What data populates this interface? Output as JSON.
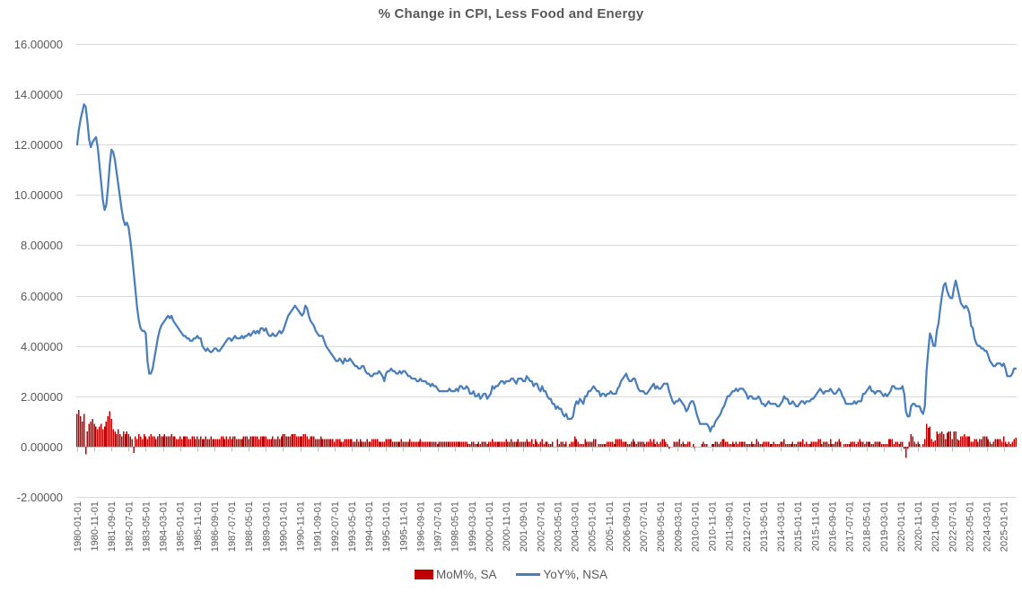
{
  "title": "% Change in CPI, Less Food and Energy",
  "colors": {
    "bar": "#C00000",
    "line": "#4A7EBB",
    "grid": "#D9D9D9",
    "axis": "#BFBFBF",
    "text": "#595959"
  },
  "chart_data": {
    "type": "combo",
    "title": "% Change in CPI, Less Food and Energy",
    "frequency": "monthly",
    "x_start": "1980-01",
    "x_end": "2025-08",
    "ylim": [
      -2,
      16
    ],
    "y_tick_step": 2,
    "grid": true,
    "legend_position": "bottom",
    "y_tick_labels": [
      "16.00000",
      "14.00000",
      "12.00000",
      "10.00000",
      "8.00000",
      "6.00000",
      "4.00000",
      "2.00000",
      "0.00000",
      "-2.00000"
    ],
    "x_tick_every_n_months": 10,
    "x_tick_labels": [
      "1980-01-01",
      "1980-11-01",
      "1981-09-01",
      "1982-07-01",
      "1983-05-01",
      "1984-03-01",
      "1985-01-01",
      "1985-11-01",
      "1986-09-01",
      "1987-07-01",
      "1988-05-01",
      "1989-03-01",
      "1990-01-01",
      "1990-11-01",
      "1991-09-01",
      "1992-07-01",
      "1993-05-01",
      "1994-03-01",
      "1995-01-01",
      "1995-11-01",
      "1996-09-01",
      "1997-07-01",
      "1998-05-01",
      "1999-03-01",
      "2000-01-01",
      "2000-11-01",
      "2001-09-01",
      "2002-07-01",
      "2003-05-01",
      "2004-03-01",
      "2005-01-01",
      "2005-11-01",
      "2006-09-01",
      "2007-07-01",
      "2008-05-01",
      "2009-03-01",
      "2010-01-01",
      "2010-11-01",
      "2011-09-01",
      "2012-07-01",
      "2013-05-01",
      "2014-03-01",
      "2015-01-01",
      "2015-11-01",
      "2016-09-01",
      "2017-07-01",
      "2018-05-01",
      "2019-03-01",
      "2020-01-01",
      "2020-11-01",
      "2021-09-01",
      "2022-07-01",
      "2023-05-01",
      "2024-03-01",
      "2025-01-01"
    ],
    "series": [
      {
        "name": "MoM%, SA",
        "type": "bar",
        "color": "#C00000",
        "values": [
          1.3,
          1.45,
          1.2,
          1.0,
          1.3,
          -0.3,
          0.6,
          0.9,
          1.0,
          1.1,
          0.9,
          0.8,
          0.7,
          0.8,
          0.9,
          0.7,
          0.8,
          1.0,
          1.2,
          1.4,
          1.1,
          0.7,
          0.6,
          0.5,
          0.7,
          0.5,
          0.4,
          0.6,
          0.5,
          0.6,
          0.5,
          0.4,
          0.3,
          -0.25,
          0.4,
          0.3,
          0.5,
          0.4,
          0.3,
          0.5,
          0.4,
          0.3,
          0.4,
          0.5,
          0.4,
          0.4,
          0.3,
          0.4,
          0.5,
          0.4,
          0.4,
          0.5,
          0.4,
          0.4,
          0.4,
          0.5,
          0.4,
          0.4,
          0.3,
          0.3,
          0.4,
          0.3,
          0.4,
          0.4,
          0.4,
          0.3,
          0.3,
          0.4,
          0.4,
          0.3,
          0.4,
          0.3,
          0.4,
          0.3,
          0.3,
          0.4,
          0.3,
          0.3,
          0.4,
          0.3,
          0.3,
          0.3,
          0.3,
          0.3,
          0.4,
          0.4,
          0.3,
          0.4,
          0.3,
          0.4,
          0.3,
          0.4,
          0.4,
          0.3,
          0.3,
          0.3,
          0.3,
          0.4,
          0.4,
          0.4,
          0.3,
          0.4,
          0.4,
          0.4,
          0.4,
          0.4,
          0.3,
          0.4,
          0.4,
          0.4,
          0.4,
          0.3,
          0.3,
          0.3,
          0.4,
          0.3,
          0.3,
          0.4,
          0.3,
          0.4,
          0.5,
          0.5,
          0.4,
          0.4,
          0.4,
          0.5,
          0.5,
          0.5,
          0.4,
          0.4,
          0.4,
          0.4,
          0.5,
          0.5,
          0.4,
          0.3,
          0.4,
          0.4,
          0.4,
          0.3,
          0.3,
          0.3,
          0.4,
          0.3,
          0.3,
          0.3,
          0.3,
          0.3,
          0.3,
          0.3,
          0.2,
          0.3,
          0.3,
          0.3,
          0.2,
          0.2,
          0.3,
          0.3,
          0.3,
          0.3,
          0.3,
          0.2,
          0.2,
          0.3,
          0.2,
          0.3,
          0.2,
          0.2,
          0.2,
          0.3,
          0.2,
          0.2,
          0.3,
          0.3,
          0.3,
          0.3,
          0.2,
          0.2,
          0.2,
          0.2,
          0.3,
          0.3,
          0.3,
          0.3,
          0.2,
          0.2,
          0.2,
          0.2,
          0.2,
          0.3,
          0.2,
          0.2,
          0.2,
          0.2,
          0.3,
          0.2,
          0.2,
          0.2,
          0.2,
          0.2,
          0.3,
          0.2,
          0.2,
          0.2,
          0.2,
          0.2,
          0.2,
          0.2,
          0.2,
          0.2,
          0.1,
          0.2,
          0.2,
          0.2,
          0.2,
          0.2,
          0.2,
          0.2,
          0.2,
          0.2,
          0.2,
          0.2,
          0.2,
          0.2,
          0.2,
          0.2,
          0.2,
          0.2,
          0.1,
          0.1,
          0.2,
          0.2,
          0.1,
          0.1,
          0.2,
          0.1,
          0.2,
          0.2,
          0.2,
          0.1,
          0.2,
          0.2,
          0.3,
          0.2,
          0.2,
          0.2,
          0.2,
          0.2,
          0.2,
          0.2,
          0.3,
          0.2,
          0.2,
          0.3,
          0.2,
          0.2,
          0.2,
          0.3,
          0.2,
          0.2,
          0.2,
          0.2,
          0.3,
          0.2,
          0.2,
          0.3,
          0.1,
          0.3,
          0.2,
          0.1,
          0.2,
          0.3,
          0.1,
          0.2,
          0.2,
          0.1,
          0.1,
          0.2,
          0.0,
          0.0,
          0.3,
          0.1,
          0.2,
          0.2,
          0.1,
          0.2,
          0.0,
          0.1,
          0.2,
          0.2,
          0.4,
          0.3,
          0.2,
          0.1,
          0.1,
          0.1,
          0.3,
          0.2,
          0.2,
          0.2,
          0.2,
          0.3,
          0.3,
          0.0,
          0.1,
          0.1,
          0.1,
          0.1,
          0.1,
          0.2,
          0.2,
          0.2,
          0.2,
          0.1,
          0.3,
          0.3,
          0.3,
          0.3,
          0.2,
          0.2,
          0.2,
          0.1,
          0.1,
          0.2,
          0.3,
          0.2,
          0.1,
          0.2,
          0.2,
          0.2,
          0.2,
          0.1,
          0.2,
          0.2,
          0.3,
          0.2,
          0.3,
          0.1,
          0.2,
          0.1,
          0.2,
          0.3,
          0.3,
          0.2,
          0.1,
          -0.1,
          0.0,
          0.0,
          0.2,
          0.2,
          0.2,
          0.3,
          0.1,
          0.2,
          0.1,
          0.1,
          0.2,
          0.2,
          0.0,
          0.1,
          -0.1,
          0.0,
          0.0,
          0.0,
          0.1,
          0.2,
          0.1,
          0.1,
          0.0,
          0.0,
          0.1,
          0.1,
          0.2,
          0.2,
          0.1,
          0.2,
          0.3,
          0.3,
          0.2,
          0.2,
          0.1,
          0.1,
          0.2,
          0.1,
          0.2,
          0.1,
          0.2,
          0.2,
          0.2,
          0.2,
          0.1,
          0.1,
          0.1,
          0.2,
          0.1,
          0.1,
          0.3,
          0.2,
          0.1,
          0.1,
          0.2,
          0.2,
          0.2,
          0.2,
          0.1,
          0.1,
          0.2,
          0.1,
          0.1,
          0.1,
          0.2,
          0.2,
          0.3,
          0.1,
          0.1,
          0.1,
          0.1,
          0.2,
          0.1,
          0.1,
          0.2,
          0.2,
          0.2,
          0.3,
          0.1,
          0.2,
          0.1,
          0.1,
          0.2,
          0.2,
          0.2,
          0.2,
          0.3,
          0.3,
          0.1,
          0.2,
          0.2,
          0.2,
          0.1,
          0.3,
          0.1,
          0.1,
          0.2,
          0.2,
          0.3,
          0.2,
          0.0,
          0.1,
          0.1,
          0.1,
          0.1,
          0.2,
          0.2,
          0.2,
          0.1,
          0.2,
          0.3,
          0.2,
          0.2,
          0.1,
          0.2,
          0.2,
          0.2,
          0.1,
          0.1,
          0.2,
          0.2,
          0.2,
          0.2,
          0.1,
          0.1,
          0.1,
          0.1,
          0.3,
          0.3,
          0.3,
          0.1,
          0.2,
          0.2,
          0.1,
          0.2,
          0.2,
          -0.1,
          -0.45,
          -0.1,
          0.2,
          0.5,
          0.4,
          0.2,
          0.1,
          0.2,
          0.1,
          0.0,
          0.1,
          0.3,
          0.9,
          0.75,
          0.8,
          0.3,
          0.2,
          0.25,
          0.6,
          0.5,
          0.55,
          0.6,
          0.5,
          0.3,
          0.55,
          0.6,
          0.6,
          0.3,
          0.6,
          0.6,
          0.3,
          0.25,
          0.4,
          0.4,
          0.5,
          0.4,
          0.4,
          0.4,
          0.2,
          0.2,
          0.3,
          0.3,
          0.2,
          0.3,
          0.3,
          0.4,
          0.4,
          0.4,
          0.3,
          0.2,
          0.1,
          0.2,
          0.3,
          0.3,
          0.3,
          0.3,
          0.2,
          0.4,
          0.2,
          0.1,
          0.2,
          0.1,
          0.2,
          0.3,
          0.35
        ]
      },
      {
        "name": "YoY%, NSA",
        "type": "line",
        "color": "#4A7EBB",
        "values": [
          12.0,
          12.6,
          13.0,
          13.3,
          13.6,
          13.5,
          12.9,
          12.2,
          11.9,
          12.1,
          12.2,
          12.3,
          11.9,
          11.2,
          10.5,
          9.8,
          9.4,
          9.6,
          10.3,
          11.2,
          11.8,
          11.7,
          11.4,
          10.9,
          10.4,
          9.9,
          9.4,
          9.0,
          8.8,
          8.9,
          8.7,
          8.2,
          7.6,
          6.9,
          6.2,
          5.5,
          5.0,
          4.7,
          4.6,
          4.6,
          4.5,
          3.4,
          2.9,
          2.9,
          3.1,
          3.5,
          3.9,
          4.3,
          4.6,
          4.8,
          4.9,
          5.0,
          5.1,
          5.2,
          5.1,
          5.2,
          5.0,
          4.9,
          4.8,
          4.7,
          4.6,
          4.5,
          4.4,
          4.4,
          4.3,
          4.3,
          4.2,
          4.2,
          4.3,
          4.3,
          4.4,
          4.3,
          4.3,
          4.0,
          3.9,
          3.8,
          3.9,
          3.8,
          3.75,
          3.8,
          3.9,
          3.9,
          3.8,
          3.8,
          3.9,
          4.0,
          4.1,
          4.2,
          4.3,
          4.3,
          4.2,
          4.3,
          4.4,
          4.3,
          4.3,
          4.3,
          4.4,
          4.3,
          4.4,
          4.4,
          4.5,
          4.4,
          4.5,
          4.6,
          4.5,
          4.6,
          4.5,
          4.7,
          4.7,
          4.6,
          4.7,
          4.5,
          4.4,
          4.4,
          4.5,
          4.4,
          4.4,
          4.5,
          4.6,
          4.5,
          4.6,
          4.8,
          5.0,
          5.2,
          5.3,
          5.4,
          5.5,
          5.6,
          5.5,
          5.4,
          5.3,
          5.2,
          5.3,
          5.6,
          5.5,
          5.2,
          5.0,
          4.9,
          4.8,
          4.6,
          4.5,
          4.4,
          4.4,
          4.4,
          4.2,
          4.0,
          3.9,
          3.8,
          3.7,
          3.6,
          3.5,
          3.4,
          3.4,
          3.5,
          3.4,
          3.3,
          3.5,
          3.4,
          3.4,
          3.5,
          3.4,
          3.3,
          3.2,
          3.2,
          3.1,
          3.1,
          3.2,
          3.2,
          3.0,
          2.9,
          2.9,
          2.8,
          2.8,
          2.9,
          2.9,
          2.9,
          3.0,
          2.9,
          2.8,
          2.6,
          2.9,
          3.0,
          3.0,
          3.1,
          3.0,
          3.0,
          2.9,
          2.9,
          3.0,
          2.9,
          3.0,
          3.0,
          2.9,
          2.8,
          2.8,
          2.7,
          2.7,
          2.7,
          2.6,
          2.6,
          2.7,
          2.6,
          2.6,
          2.6,
          2.5,
          2.5,
          2.4,
          2.5,
          2.4,
          2.4,
          2.3,
          2.2,
          2.2,
          2.2,
          2.2,
          2.2,
          2.2,
          2.3,
          2.2,
          2.2,
          2.2,
          2.3,
          2.2,
          2.4,
          2.4,
          2.3,
          2.3,
          2.4,
          2.3,
          2.1,
          2.1,
          2.2,
          2.0,
          2.0,
          2.1,
          1.9,
          2.0,
          2.1,
          2.1,
          1.9,
          2.0,
          2.1,
          2.4,
          2.3,
          2.4,
          2.4,
          2.5,
          2.6,
          2.6,
          2.5,
          2.6,
          2.6,
          2.6,
          2.7,
          2.7,
          2.6,
          2.5,
          2.7,
          2.7,
          2.7,
          2.6,
          2.6,
          2.8,
          2.7,
          2.6,
          2.6,
          2.4,
          2.5,
          2.5,
          2.3,
          2.2,
          2.4,
          2.2,
          2.2,
          2.0,
          1.9,
          1.9,
          1.7,
          1.7,
          1.5,
          1.6,
          1.5,
          1.5,
          1.3,
          1.2,
          1.3,
          1.1,
          1.1,
          1.1,
          1.2,
          1.6,
          1.8,
          1.7,
          1.9,
          1.8,
          1.7,
          2.0,
          2.0,
          2.2,
          2.2,
          2.3,
          2.4,
          2.3,
          2.2,
          2.2,
          2.0,
          2.1,
          2.1,
          2.0,
          2.1,
          2.1,
          2.2,
          2.1,
          2.1,
          2.1,
          2.3,
          2.4,
          2.6,
          2.7,
          2.8,
          2.9,
          2.7,
          2.6,
          2.6,
          2.7,
          2.7,
          2.5,
          2.3,
          2.2,
          2.2,
          2.2,
          2.1,
          2.1,
          2.2,
          2.3,
          2.4,
          2.5,
          2.3,
          2.4,
          2.3,
          2.3,
          2.4,
          2.5,
          2.5,
          2.5,
          2.2,
          2.0,
          1.8,
          1.7,
          1.8,
          1.8,
          1.9,
          1.8,
          1.7,
          1.6,
          1.4,
          1.5,
          1.7,
          1.8,
          1.8,
          1.6,
          1.3,
          1.1,
          0.9,
          0.9,
          0.9,
          0.9,
          0.9,
          0.8,
          0.6,
          0.8,
          0.8,
          1.0,
          1.1,
          1.2,
          1.3,
          1.5,
          1.6,
          1.8,
          2.0,
          2.0,
          2.1,
          2.2,
          2.2,
          2.3,
          2.2,
          2.3,
          2.3,
          2.3,
          2.2,
          2.1,
          1.9,
          2.0,
          2.0,
          1.9,
          1.9,
          1.9,
          2.0,
          1.9,
          1.7,
          1.7,
          1.6,
          1.7,
          1.8,
          1.7,
          1.7,
          1.7,
          1.7,
          1.6,
          1.6,
          1.7,
          1.8,
          2.0,
          1.9,
          1.9,
          1.7,
          1.7,
          1.8,
          1.7,
          1.6,
          1.6,
          1.7,
          1.8,
          1.8,
          1.7,
          1.8,
          1.8,
          1.8,
          1.9,
          1.9,
          2.0,
          2.1,
          2.2,
          2.3,
          2.2,
          2.1,
          2.2,
          2.2,
          2.2,
          2.3,
          2.2,
          2.1,
          2.1,
          2.2,
          2.3,
          2.2,
          2.0,
          1.9,
          1.7,
          1.7,
          1.7,
          1.7,
          1.7,
          1.8,
          1.7,
          1.8,
          1.8,
          1.8,
          2.1,
          2.1,
          2.2,
          2.3,
          2.4,
          2.2,
          2.2,
          2.1,
          2.2,
          2.2,
          2.2,
          2.1,
          2.0,
          2.1,
          2.0,
          2.1,
          2.2,
          2.4,
          2.4,
          2.3,
          2.3,
          2.3,
          2.3,
          2.4,
          2.1,
          1.4,
          1.2,
          1.2,
          1.6,
          1.7,
          1.7,
          1.6,
          1.6,
          1.6,
          1.4,
          1.3,
          1.6,
          3.0,
          3.8,
          4.5,
          4.3,
          4.0,
          4.0,
          4.6,
          4.9,
          5.5,
          6.0,
          6.4,
          6.5,
          6.2,
          6.0,
          5.9,
          5.9,
          6.3,
          6.6,
          6.3,
          6.0,
          5.7,
          5.6,
          5.5,
          5.6,
          5.5,
          5.3,
          4.8,
          4.7,
          4.3,
          4.1,
          4.0,
          4.0,
          3.9,
          3.9,
          3.8,
          3.8,
          3.6,
          3.4,
          3.3,
          3.2,
          3.2,
          3.3,
          3.3,
          3.3,
          3.2,
          3.3,
          3.1,
          2.8,
          2.8,
          2.8,
          2.9,
          3.1,
          3.1
        ]
      }
    ]
  }
}
